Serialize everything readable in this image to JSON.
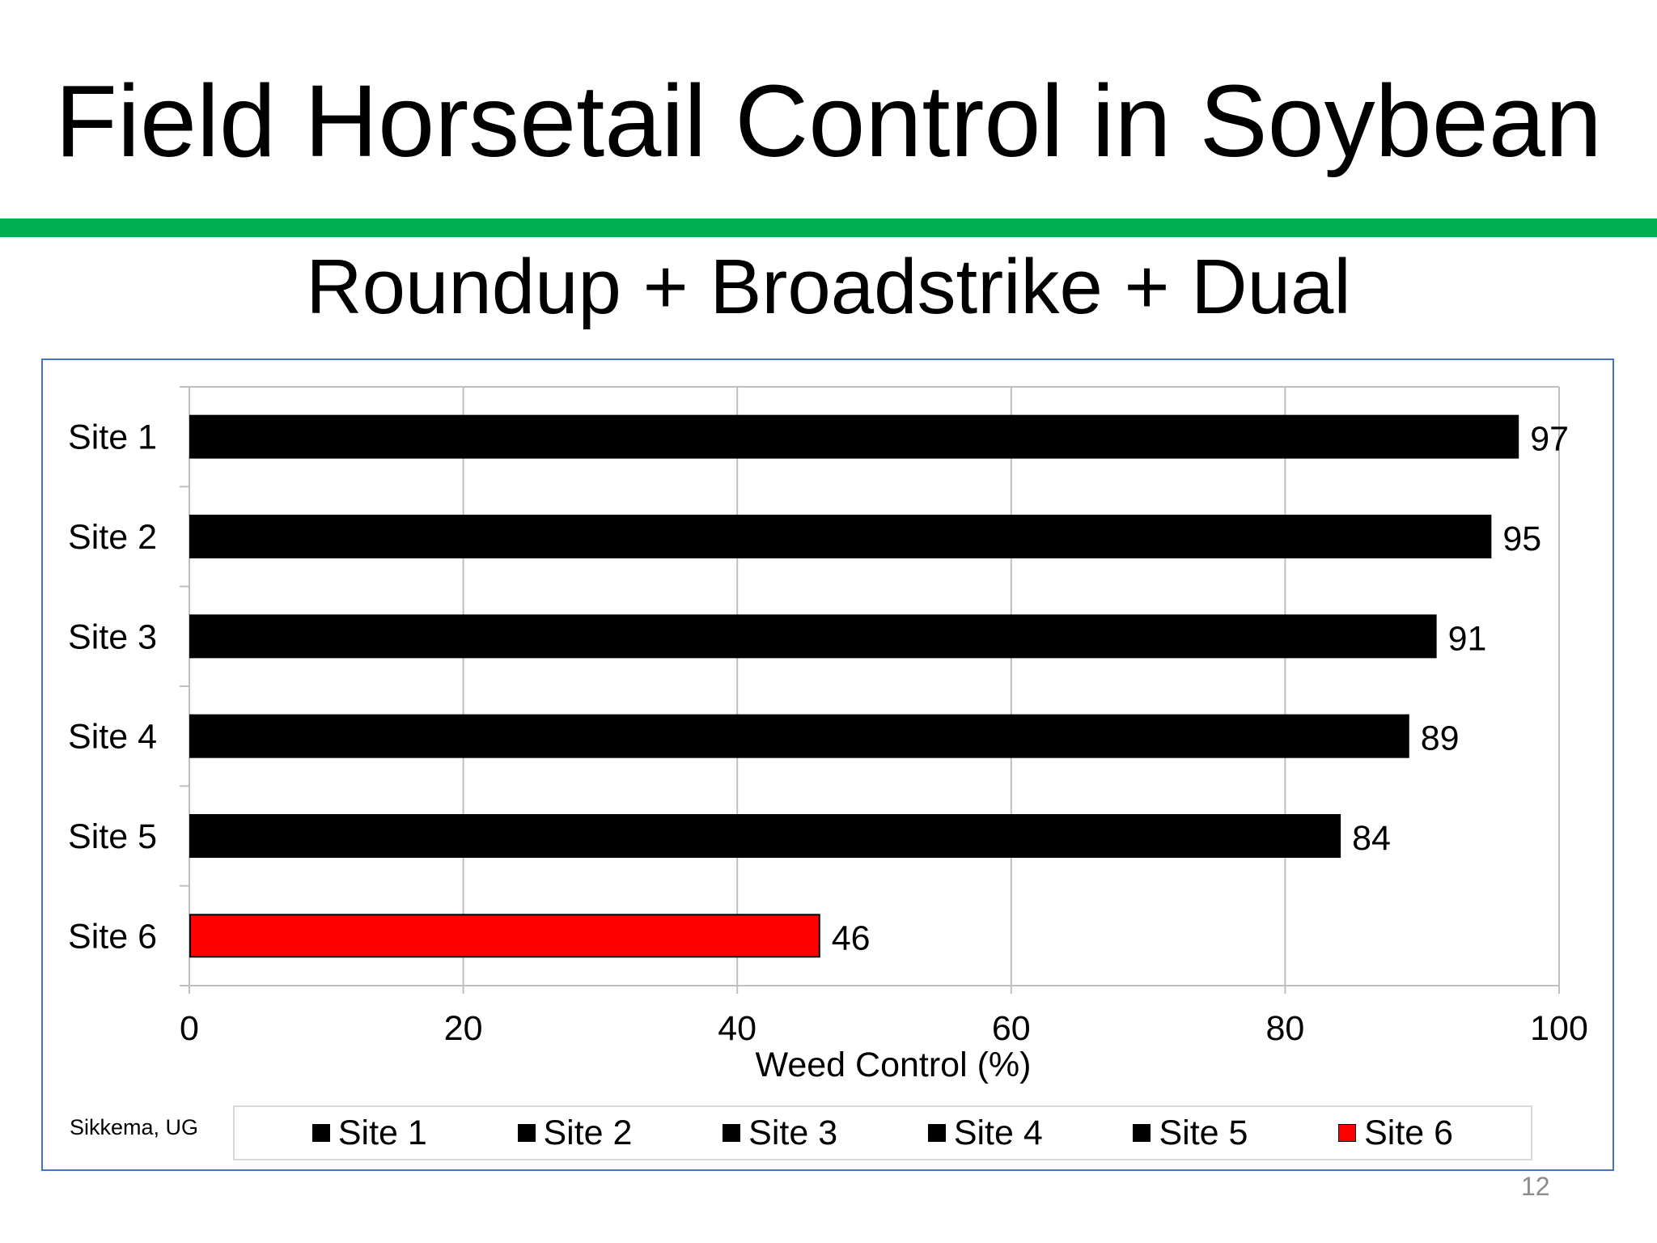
{
  "slide": {
    "title": "Field Horsetail Control in Soybean",
    "subtitle": "Roundup + Broadstrike + Dual",
    "source_note": "Sikkema, UG",
    "page_number": "12",
    "accent_color": "#00b050",
    "frame_color": "#4472c4"
  },
  "chart_data": {
    "type": "bar",
    "orientation": "horizontal",
    "categories": [
      "Site 1",
      "Site 2",
      "Site 3",
      "Site 4",
      "Site 5",
      "Site 6"
    ],
    "values": [
      97,
      95,
      91,
      89,
      84,
      46
    ],
    "colors": [
      "#000000",
      "#000000",
      "#000000",
      "#000000",
      "#000000",
      "#ff0000"
    ],
    "data_labels": [
      "97",
      "95",
      "91",
      "89",
      "84",
      "46"
    ],
    "xlabel": "Weed Control (%)",
    "ylabel": "",
    "xlim": [
      0,
      100
    ],
    "xticks": [
      0,
      20,
      40,
      60,
      80,
      100
    ],
    "xtick_labels": [
      "0",
      "20",
      "40",
      "60",
      "80",
      "100"
    ],
    "grid": true,
    "legend": {
      "position": "bottom",
      "entries": [
        "Site 1",
        "Site 2",
        "Site 3",
        "Site 4",
        "Site 5",
        "Site 6"
      ]
    }
  }
}
